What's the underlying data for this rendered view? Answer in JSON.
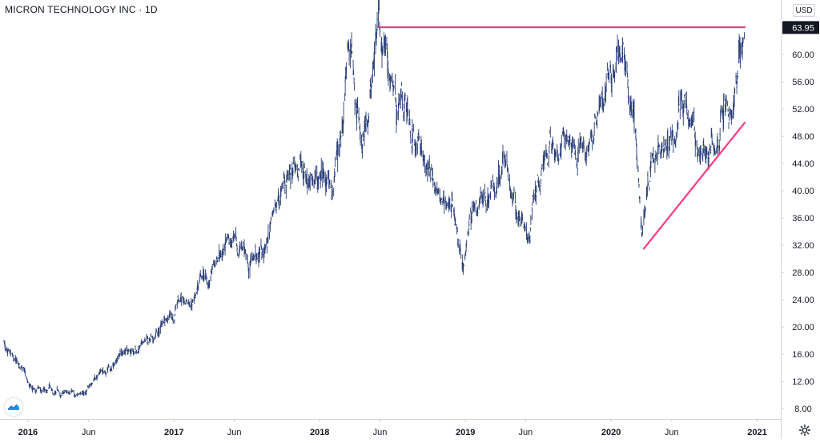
{
  "title": "MICRON TECHNOLOGY INC · 1D",
  "currency": "USD",
  "icons": {
    "logo": "tradingview-logo-icon",
    "settings": "gear-icon"
  },
  "colors": {
    "bar": "#2a3f77",
    "bar_up": "#2962ff",
    "trendline": "#ff3b7c",
    "last_price_tag": "#131722",
    "axis_text": "#131722",
    "axis_line": "#d1d4dc"
  },
  "chart_data": {
    "type": "ohlc",
    "title": "MICRON TECHNOLOGY INC · 1D",
    "ylim": [
      6.5,
      68
    ],
    "y_ticks": [
      "8.00",
      "12.00",
      "16.00",
      "20.00",
      "24.00",
      "28.00",
      "32.00",
      "36.00",
      "40.00",
      "44.00",
      "48.00",
      "52.00",
      "56.00",
      "60.00",
      "63.95"
    ],
    "x_ticks": [
      "2016",
      "Jun",
      "2017",
      "Jun",
      "2018",
      "Jun",
      "2019",
      "Jun",
      "2020",
      "Jun",
      "2021"
    ],
    "last_price": "63.95",
    "series": [
      {
        "points": [
          [
            "2015-11-01",
            18.0
          ],
          [
            "2015-12-01",
            15.5
          ],
          [
            "2016-01-15",
            11.5
          ],
          [
            "2016-02-15",
            10.3
          ],
          [
            "2016-03-15",
            10.8
          ],
          [
            "2016-04-15",
            10.6
          ],
          [
            "2016-05-15",
            10.0
          ],
          [
            "2016-06-15",
            12.5
          ],
          [
            "2016-07-15",
            13.0
          ],
          [
            "2016-08-15",
            15.5
          ],
          [
            "2016-09-15",
            17.5
          ],
          [
            "2016-10-15",
            17.8
          ],
          [
            "2016-11-15",
            19.0
          ],
          [
            "2016-12-15",
            21.5
          ],
          [
            "2017-01-15",
            23.5
          ],
          [
            "2017-02-15",
            23.8
          ],
          [
            "2017-03-15",
            27.5
          ],
          [
            "2017-04-15",
            28.5
          ],
          [
            "2017-05-15",
            30.0
          ],
          [
            "2017-06-15",
            31.5
          ],
          [
            "2017-07-15",
            30.0
          ],
          [
            "2017-08-15",
            32.0
          ],
          [
            "2017-09-15",
            37.5
          ],
          [
            "2017-10-15",
            42.0
          ],
          [
            "2017-11-01",
            46.0
          ],
          [
            "2017-11-20",
            44.0
          ],
          [
            "2017-12-15",
            41.5
          ],
          [
            "2018-01-15",
            44.0
          ],
          [
            "2018-02-01",
            41.0
          ],
          [
            "2018-03-01",
            52.0
          ],
          [
            "2018-03-15",
            60.5
          ],
          [
            "2018-04-15",
            48.0
          ],
          [
            "2018-05-01",
            51.5
          ],
          [
            "2018-05-28",
            63.5
          ],
          [
            "2018-06-15",
            60.0
          ],
          [
            "2018-07-01",
            54.0
          ],
          [
            "2018-07-15",
            55.5
          ],
          [
            "2018-08-15",
            50.0
          ],
          [
            "2018-09-15",
            46.5
          ],
          [
            "2018-10-15",
            40.0
          ],
          [
            "2018-11-15",
            37.0
          ],
          [
            "2018-12-01",
            36.0
          ],
          [
            "2018-12-24",
            29.5
          ],
          [
            "2019-01-15",
            36.0
          ],
          [
            "2019-02-15",
            39.5
          ],
          [
            "2019-03-15",
            41.5
          ],
          [
            "2019-04-15",
            43.5
          ],
          [
            "2019-05-15",
            36.0
          ],
          [
            "2019-06-10",
            33.0
          ],
          [
            "2019-07-01",
            41.5
          ],
          [
            "2019-08-01",
            45.5
          ],
          [
            "2019-08-15",
            43.0
          ],
          [
            "2019-09-15",
            46.5
          ],
          [
            "2019-10-15",
            46.5
          ],
          [
            "2019-11-15",
            48.0
          ],
          [
            "2019-12-15",
            53.5
          ],
          [
            "2020-01-15",
            59.0
          ],
          [
            "2020-02-15",
            56.5
          ],
          [
            "2020-02-28",
            50.0
          ],
          [
            "2020-03-18",
            32.5
          ],
          [
            "2020-04-01",
            40.5
          ],
          [
            "2020-04-15",
            44.5
          ],
          [
            "2020-05-15",
            46.0
          ],
          [
            "2020-06-15",
            50.5
          ],
          [
            "2020-07-15",
            50.5
          ],
          [
            "2020-08-15",
            47.5
          ],
          [
            "2020-09-15",
            44.5
          ],
          [
            "2020-10-01",
            49.0
          ],
          [
            "2020-10-15",
            51.5
          ],
          [
            "2020-11-01",
            52.5
          ],
          [
            "2020-11-15",
            58.5
          ],
          [
            "2020-11-30",
            63.5
          ]
        ]
      }
    ],
    "trendlines": [
      {
        "name": "resistance",
        "from": [
          "2018-05-28",
          64.0
        ],
        "to": [
          "2020-12-01",
          64.0
        ]
      },
      {
        "name": "support",
        "from": [
          "2020-03-23",
          31.5
        ],
        "to": [
          "2020-12-01",
          50.0
        ]
      }
    ]
  }
}
